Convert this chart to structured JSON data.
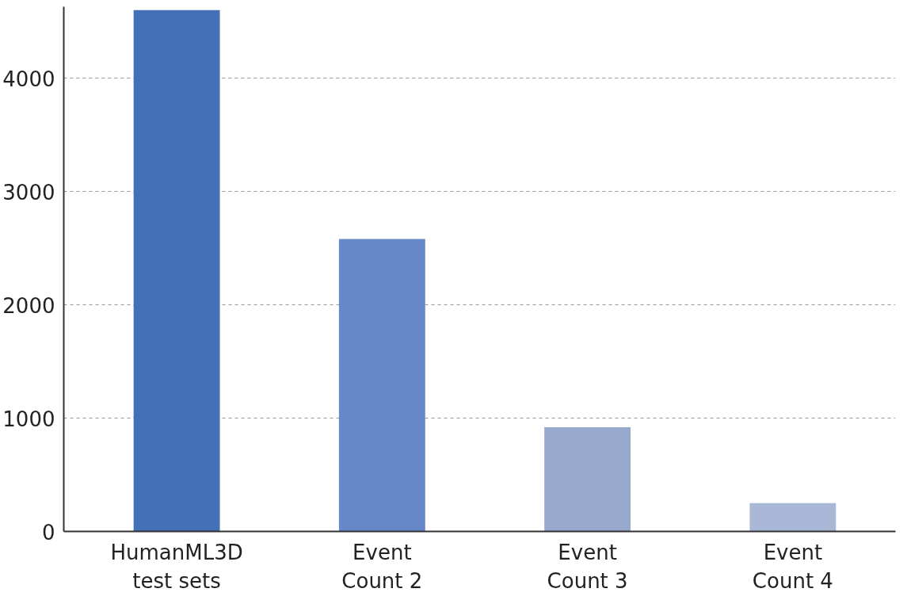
{
  "chart_data": {
    "type": "bar",
    "categories": [
      "HumanML3D test sets",
      "Event Count 2",
      "Event Count 3",
      "Event Count 4"
    ],
    "values": [
      4600,
      2580,
      920,
      250
    ],
    "colors": [
      "#4470b8",
      "#6688c8",
      "#97a9cc",
      "#a9b8d6"
    ],
    "ylim": [
      0,
      4630
    ],
    "yticks": [
      0,
      1000,
      2000,
      3000,
      4000
    ],
    "grid": "y"
  }
}
